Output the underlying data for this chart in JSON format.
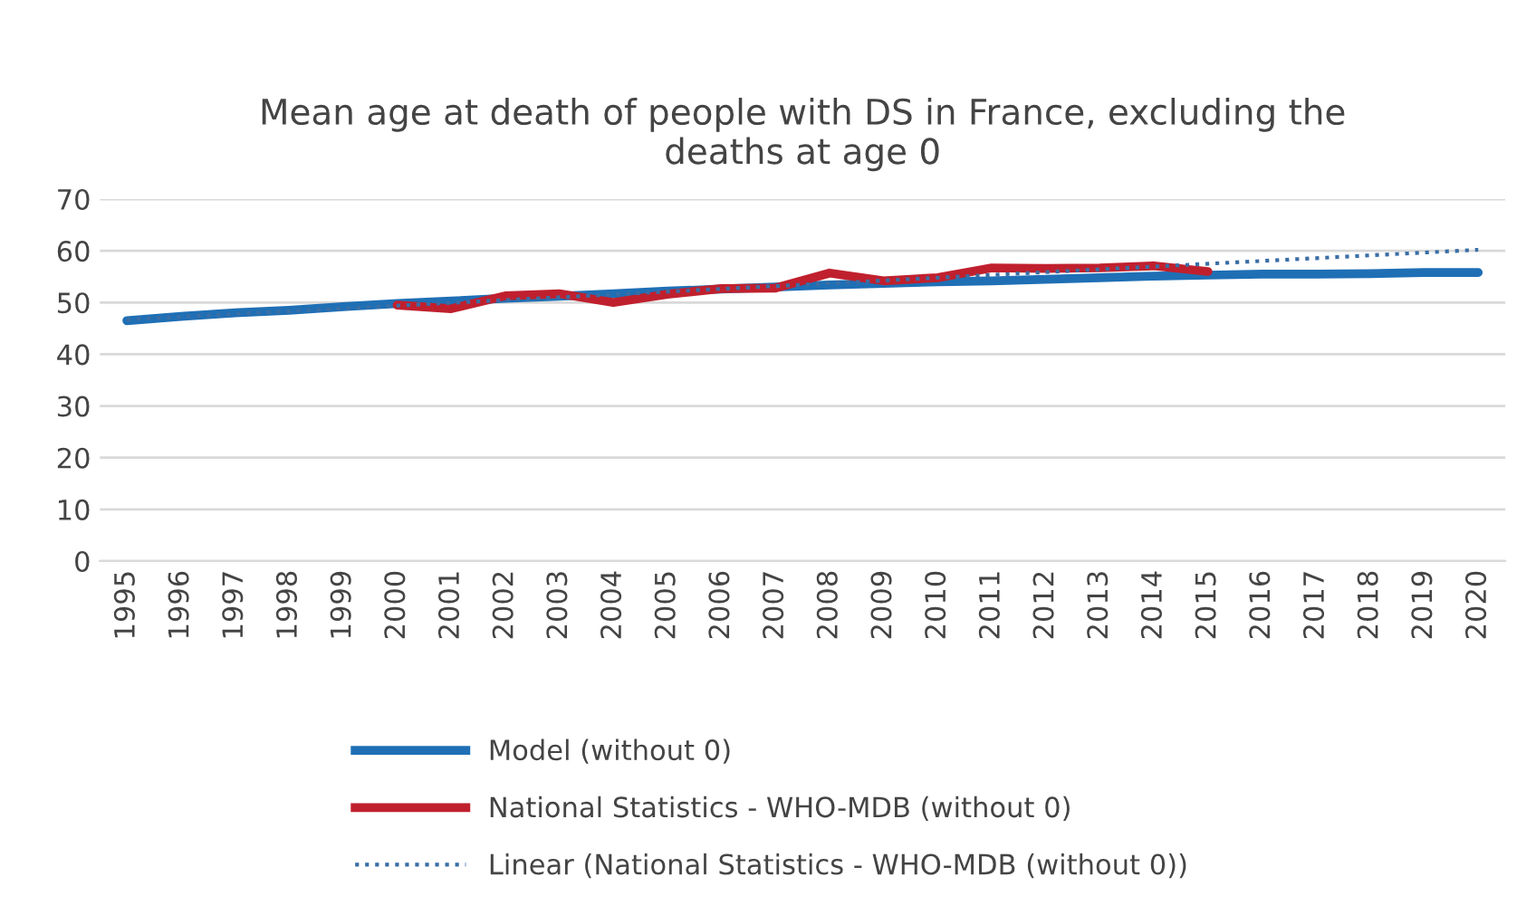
{
  "chart_data": {
    "type": "line",
    "title": "Mean age at death of people with DS in France, excluding the\ndeaths at age 0",
    "categories": [
      "1995",
      "1996",
      "1997",
      "1998",
      "1999",
      "2000",
      "2001",
      "2002",
      "2003",
      "2004",
      "2005",
      "2006",
      "2007",
      "2008",
      "2009",
      "2010",
      "2011",
      "2012",
      "2013",
      "2014",
      "2015",
      "2016",
      "2017",
      "2018",
      "2019",
      "2020"
    ],
    "series": [
      {
        "name": "Model (without 0)",
        "color": "#1f6fb5",
        "line_style": "solid",
        "values": [
          46.5,
          47.3,
          48.0,
          48.5,
          49.2,
          49.8,
          50.3,
          50.8,
          51.2,
          51.7,
          52.2,
          52.6,
          53.0,
          53.4,
          53.7,
          54.0,
          54.2,
          54.5,
          54.8,
          55.1,
          55.3,
          55.5,
          55.5,
          55.6,
          55.8,
          55.8
        ]
      },
      {
        "name": "National Statistics - WHO-MDB (without 0)",
        "color": "#c0202e",
        "line_style": "solid",
        "values": [
          null,
          null,
          null,
          null,
          null,
          49.5,
          48.8,
          51.3,
          51.7,
          50.0,
          51.6,
          52.7,
          52.8,
          55.7,
          54.2,
          54.8,
          56.7,
          56.6,
          56.7,
          57.1,
          56.0,
          null,
          null,
          null,
          null,
          null
        ]
      },
      {
        "name": "Linear (National Statistics - WHO-MDB (without 0))",
        "color": "#3a6ea5",
        "line_style": "dotted",
        "values": [
          46.7,
          null,
          null,
          null,
          null,
          null,
          null,
          null,
          null,
          null,
          null,
          null,
          null,
          null,
          null,
          null,
          null,
          null,
          null,
          null,
          null,
          null,
          null,
          null,
          null,
          60.2
        ]
      }
    ],
    "ylim": [
      0,
      70
    ],
    "yticks": [
      0,
      10,
      20,
      30,
      40,
      50,
      60,
      70
    ],
    "grid": "y",
    "legend": "bottom"
  }
}
